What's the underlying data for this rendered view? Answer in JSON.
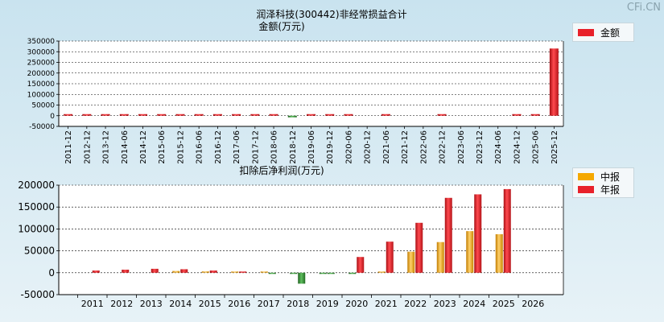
{
  "watermark": "CFi.CN",
  "top_chart_title": "润泽科技(300442)非经常损益合计",
  "top_chart_subtitle": "金额(万元)",
  "top_legend_label": "金额",
  "bottom_chart_title": "扣除后净利润(万元)",
  "bottom_legend_labels": [
    "中报",
    "年报"
  ],
  "colors": {
    "annual": "#e8212a",
    "interim": "#f5a800",
    "negative": "#2d8a2d"
  },
  "chart_data": [
    {
      "type": "bar",
      "title": "润泽科技(300442)非经常损益合计",
      "ylabel": "金额(万元)",
      "categories": [
        "2011-12",
        "2012-12",
        "2013-12",
        "2014-06",
        "2014-12",
        "2015-06",
        "2015-12",
        "2016-06",
        "2016-12",
        "2017-06",
        "2017-12",
        "2018-06",
        "2018-12",
        "2019-06",
        "2019-12",
        "2020-06",
        "2020-12",
        "2021-06",
        "2021-12",
        "2022-06",
        "2022-12",
        "2023-06",
        "2023-12",
        "2024-06",
        "2024-12",
        "2025-06",
        "2025-12"
      ],
      "series": [
        {
          "name": "金额",
          "values": [
            500,
            300,
            400,
            300,
            500,
            300,
            400,
            200,
            300,
            200,
            300,
            300,
            -2000,
            300,
            800,
            400,
            0,
            300,
            0,
            0,
            3000,
            0,
            0,
            0,
            2000,
            2500,
            315000
          ]
        }
      ],
      "ylim": [
        -50000,
        350000
      ],
      "yticks": [
        -50000,
        0,
        50000,
        100000,
        150000,
        200000,
        250000,
        300000,
        350000
      ],
      "grid": true,
      "legend": "top-right"
    },
    {
      "type": "bar",
      "title": "扣除后净利润(万元)",
      "categories": [
        "2011",
        "2012",
        "2013",
        "2014",
        "2015",
        "2016",
        "2017",
        "2018",
        "2019",
        "2020",
        "2021",
        "2022",
        "2023",
        "2024",
        "2025",
        "2026"
      ],
      "series": [
        {
          "name": "中报",
          "values": [
            0,
            0,
            0,
            4000,
            3000,
            1500,
            1500,
            -1500,
            -1500,
            -1500,
            2000,
            48000,
            70000,
            95000,
            88000,
            null
          ]
        },
        {
          "name": "年报",
          "values": [
            5000,
            7000,
            9000,
            8000,
            5000,
            2000,
            -1000,
            -25000,
            -2000,
            36000,
            71000,
            114000,
            171000,
            179000,
            191000,
            null
          ]
        }
      ],
      "ylim": [
        -50000,
        200000
      ],
      "yticks": [
        -50000,
        0,
        50000,
        100000,
        150000,
        200000
      ],
      "grid": true,
      "legend": "top-right"
    }
  ]
}
